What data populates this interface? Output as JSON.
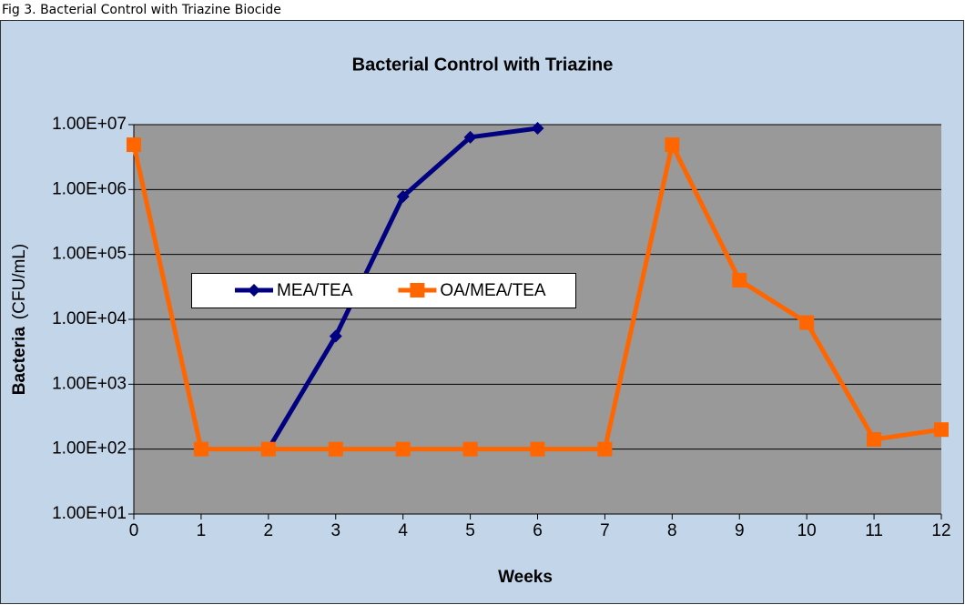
{
  "caption": "Fig 3. Bacterial Control with Triazine Biocide",
  "chart_data": {
    "type": "line",
    "title": "Bacterial Control with Triazine",
    "x_label": "Weeks",
    "y_label": "Bacteria",
    "y_label_unit": "(CFU/mL)",
    "x": [
      0,
      1,
      2,
      3,
      4,
      5,
      6,
      7,
      8,
      9,
      10,
      11,
      12
    ],
    "series": [
      {
        "name": "MEA/TEA",
        "color": "#000080",
        "marker": "diamond",
        "values": [
          null,
          null,
          100,
          5500,
          780000,
          6400000,
          8800000,
          null,
          null,
          null,
          null,
          null,
          null
        ]
      },
      {
        "name": "OA/MEA/TEA",
        "color": "#ff6600",
        "marker": "square",
        "values": [
          4900000,
          100,
          100,
          100,
          100,
          100,
          100,
          100,
          4900000,
          40000,
          8900,
          141,
          200
        ]
      }
    ],
    "xlim": [
      0,
      12
    ],
    "xticks": [
      0,
      1,
      2,
      3,
      4,
      5,
      6,
      7,
      8,
      9,
      10,
      11,
      12
    ],
    "ylim": [
      10,
      10000000
    ],
    "log_y": true,
    "yticks": [
      {
        "value": 10,
        "label": "1.00E+01"
      },
      {
        "value": 100,
        "label": "1.00E+02"
      },
      {
        "value": 1000,
        "label": "1.00E+03"
      },
      {
        "value": 10000,
        "label": "1.00E+04"
      },
      {
        "value": 100000,
        "label": "1.00E+05"
      },
      {
        "value": 1000000,
        "label": "1.00E+06"
      },
      {
        "value": 10000000,
        "label": "1.00E+07"
      }
    ],
    "grid": true,
    "legend": "center-left"
  }
}
